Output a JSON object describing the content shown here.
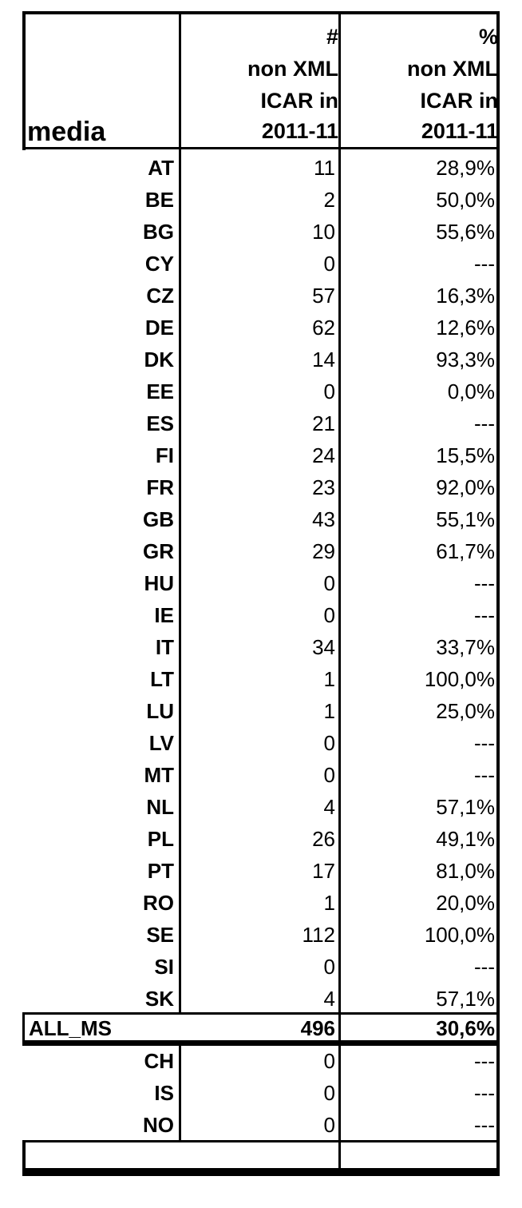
{
  "header": {
    "media_label": "media",
    "count_col": [
      "#",
      "non XML",
      "ICAR  in",
      "2011-11"
    ],
    "pct_col": [
      "%",
      "non XML",
      "ICAR  in",
      "2011-11"
    ]
  },
  "rows": [
    {
      "code": "AT",
      "count": "11",
      "pct": "28,9%"
    },
    {
      "code": "BE",
      "count": "2",
      "pct": "50,0%"
    },
    {
      "code": "BG",
      "count": "10",
      "pct": "55,6%"
    },
    {
      "code": "CY",
      "count": "0",
      "pct": "---"
    },
    {
      "code": "CZ",
      "count": "57",
      "pct": "16,3%"
    },
    {
      "code": "DE",
      "count": "62",
      "pct": "12,6%"
    },
    {
      "code": "DK",
      "count": "14",
      "pct": "93,3%"
    },
    {
      "code": "EE",
      "count": "0",
      "pct": "0,0%"
    },
    {
      "code": "ES",
      "count": "21",
      "pct": "---"
    },
    {
      "code": "FI",
      "count": "24",
      "pct": "15,5%"
    },
    {
      "code": "FR",
      "count": "23",
      "pct": "92,0%"
    },
    {
      "code": "GB",
      "count": "43",
      "pct": "55,1%"
    },
    {
      "code": "GR",
      "count": "29",
      "pct": "61,7%"
    },
    {
      "code": "HU",
      "count": "0",
      "pct": "---"
    },
    {
      "code": "IE",
      "count": "0",
      "pct": "---"
    },
    {
      "code": "IT",
      "count": "34",
      "pct": "33,7%"
    },
    {
      "code": "LT",
      "count": "1",
      "pct": "100,0%"
    },
    {
      "code": "LU",
      "count": "1",
      "pct": "25,0%"
    },
    {
      "code": "LV",
      "count": "0",
      "pct": "---"
    },
    {
      "code": "MT",
      "count": "0",
      "pct": "---"
    },
    {
      "code": "NL",
      "count": "4",
      "pct": "57,1%"
    },
    {
      "code": "PL",
      "count": "26",
      "pct": "49,1%"
    },
    {
      "code": "PT",
      "count": "17",
      "pct": "81,0%"
    },
    {
      "code": "RO",
      "count": "1",
      "pct": "20,0%"
    },
    {
      "code": "SE",
      "count": "112",
      "pct": "100,0%"
    },
    {
      "code": "SI",
      "count": "0",
      "pct": "---"
    },
    {
      "code": "SK",
      "count": "4",
      "pct": "57,1%"
    }
  ],
  "total": {
    "code": "ALL_MS",
    "count": "496",
    "pct": "30,6%"
  },
  "extra_rows": [
    {
      "code": "CH",
      "count": "0",
      "pct": "---"
    },
    {
      "code": "IS",
      "count": "0",
      "pct": "---"
    },
    {
      "code": "NO",
      "count": "0",
      "pct": "---"
    }
  ]
}
